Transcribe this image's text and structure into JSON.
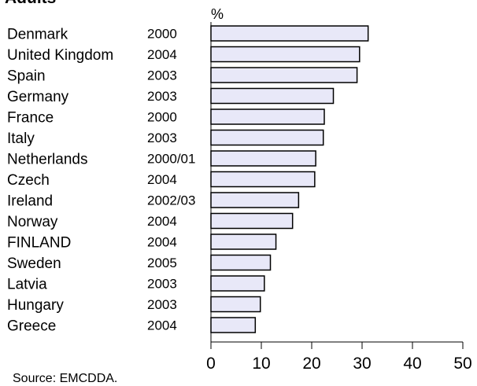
{
  "heading": "Adults",
  "source": "Source: EMCDDA.",
  "chart_data": {
    "type": "bar",
    "orientation": "horizontal",
    "unit_label": "%",
    "categories": [
      "Denmark",
      "United Kingdom",
      "Spain",
      "Germany",
      "France",
      "Italy",
      "Netherlands",
      "Czech",
      "Ireland",
      "Norway",
      "FINLAND",
      "Sweden",
      "Latvia",
      "Hungary",
      "Greece"
    ],
    "years": [
      "2000",
      "2004",
      "2003",
      "2003",
      "2000",
      "2003",
      "2000/01",
      "2004",
      "2002/03",
      "2004",
      "2004",
      "2005",
      "2003",
      "2003",
      "2004"
    ],
    "values": [
      31.2,
      29.5,
      29.0,
      24.3,
      22.5,
      22.3,
      20.8,
      20.6,
      17.4,
      16.2,
      12.9,
      11.8,
      10.6,
      9.8,
      8.8
    ],
    "xlim": [
      0,
      50
    ],
    "xticks": [
      0,
      10,
      20,
      30,
      40,
      50
    ],
    "bar_color": "#e8e8f8",
    "grid": false
  }
}
